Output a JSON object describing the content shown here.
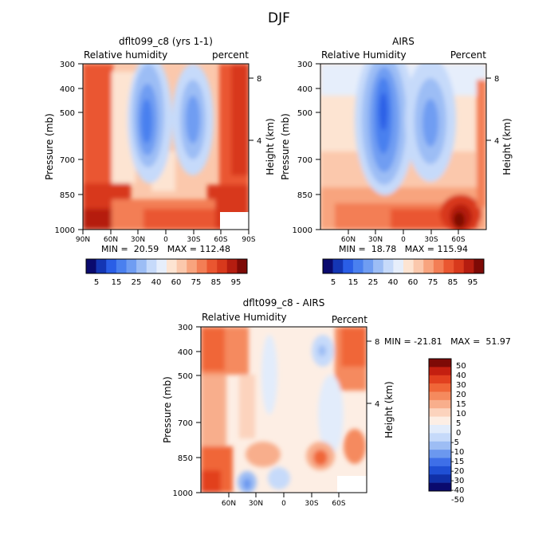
{
  "figure": {
    "title": "DJF"
  },
  "chart_data": [
    {
      "type": "heatmap",
      "title": "dflt099_c8 (yrs 1-1)",
      "left_label": "Relative humidity",
      "right_label": "percent",
      "ylabel": "Pressure (mb)",
      "y2label": "Height (km)",
      "xticks": [
        "90N",
        "60N",
        "30N",
        "0",
        "30S",
        "60S",
        "90S"
      ],
      "yticks": [
        "300",
        "400",
        "500",
        "700",
        "850",
        "1000"
      ],
      "y2ticks": [
        "8",
        "4"
      ],
      "xlim": [
        "90N",
        "90S"
      ],
      "ylim": [
        1000,
        300
      ],
      "stats": "MIN =  20.59   MAX = 112.48",
      "colorbar": {
        "orientation": "horizontal",
        "labels": [
          "5",
          "15",
          "25",
          "40",
          "60",
          "75",
          "85",
          "95"
        ]
      }
    },
    {
      "type": "heatmap",
      "title": "AIRS",
      "left_label": "Relative Humidity",
      "right_label": "Percent",
      "ylabel": "Pressure (mb)",
      "y2label": "Height (km)",
      "xticks": [
        "60N",
        "30N",
        "0",
        "30S",
        "60S"
      ],
      "yticks": [
        "300",
        "400",
        "500",
        "700",
        "850",
        "1000"
      ],
      "y2ticks": [
        "8",
        "4"
      ],
      "ylim": [
        1000,
        300
      ],
      "stats": "MIN =  18.78   MAX = 115.94",
      "colorbar": {
        "orientation": "horizontal",
        "labels": [
          "5",
          "15",
          "25",
          "40",
          "60",
          "75",
          "85",
          "95"
        ]
      }
    },
    {
      "type": "heatmap",
      "title": "dflt099_c8 - AIRS",
      "left_label": "Relative Humidity",
      "right_label": "Percent",
      "ylabel": "Pressure (mb)",
      "y2label": "Height (km)",
      "xticks": [
        "60N",
        "30N",
        "0",
        "30S",
        "60S"
      ],
      "yticks": [
        "300",
        "400",
        "500",
        "700",
        "850",
        "1000"
      ],
      "y2ticks": [
        "8",
        "4"
      ],
      "ylim": [
        1000,
        300
      ],
      "stats": "MIN = -21.81   MAX =  51.97",
      "colorbar": {
        "orientation": "vertical",
        "labels": [
          "50",
          "40",
          "30",
          "20",
          "15",
          "10",
          "5",
          "0",
          "-5",
          "-10",
          "-15",
          "-20",
          "-30",
          "-40",
          "-50"
        ]
      }
    }
  ],
  "colors": {
    "rh_scale": [
      "#0a0a6e",
      "#1436b4",
      "#2a5ee6",
      "#4a80ef",
      "#6f9df2",
      "#9cbdf5",
      "#c6dafa",
      "#e6eefb",
      "#fde4d2",
      "#fbc8ac",
      "#f8a47e",
      "#f37e55",
      "#ea5630",
      "#d8391c",
      "#b51d10",
      "#7e0a06"
    ],
    "diff_scale": [
      "#7e0a06",
      "#c41f10",
      "#e2401f",
      "#f06638",
      "#f58a5e",
      "#f8ae8c",
      "#fcd3bd",
      "#fdeee4",
      "#e2ecfb",
      "#c6dafa",
      "#9dbdf4",
      "#6b98ef",
      "#3e6fe8",
      "#1f4fd4",
      "#1030a8",
      "#0a0a6e"
    ]
  }
}
